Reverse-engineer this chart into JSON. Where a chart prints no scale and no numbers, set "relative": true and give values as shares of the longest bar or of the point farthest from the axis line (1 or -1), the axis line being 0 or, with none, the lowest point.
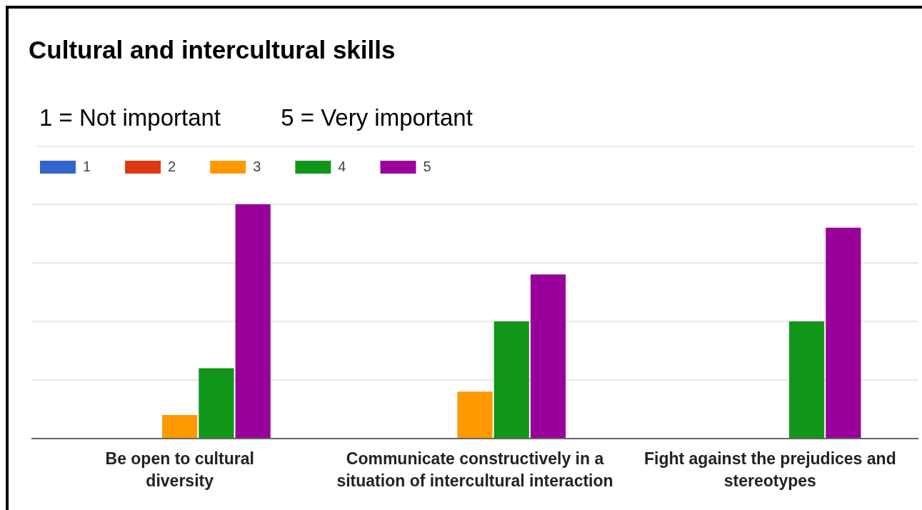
{
  "chart_data": {
    "type": "bar",
    "title": "Cultural and intercultural skills",
    "subtitle": "1 = Not important        5 = Very important",
    "categories": [
      "Be open to cultural\ndiversity",
      "Communicate constructively in a\nsituation of intercultural interaction",
      "Fight against the prejudices and\nstereotypes"
    ],
    "series": [
      {
        "name": "1",
        "color": "#3366cc",
        "values": [
          0,
          0,
          0
        ]
      },
      {
        "name": "2",
        "color": "#dc3912",
        "values": [
          0,
          0,
          0
        ]
      },
      {
        "name": "3",
        "color": "#ff9900",
        "values": [
          0.1,
          0.2,
          0
        ]
      },
      {
        "name": "4",
        "color": "#109618",
        "values": [
          0.3,
          0.5,
          0.5
        ]
      },
      {
        "name": "5",
        "color": "#990099",
        "values": [
          1,
          0.7,
          0.9
        ]
      }
    ],
    "relative": true,
    "grid": "y",
    "legend": "top left"
  }
}
